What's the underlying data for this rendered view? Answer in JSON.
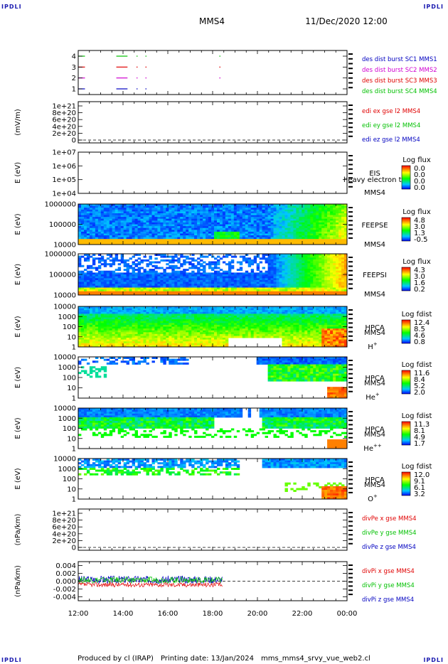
{
  "header": {
    "corner_label": "IPDLI",
    "spacecraft": "MMS4",
    "datetime": "11/Dec/2020 12:00"
  },
  "footer": {
    "produced_by": "Produced by cl (IRAP)",
    "printing_date": "Printing date: 13/Jan/2024",
    "filename": "mms_mms4_srvy_vue_web2.cl"
  },
  "time_axis": {
    "ticks": [
      "12:00",
      "14:00",
      "16:00",
      "18:00",
      "20:00",
      "22:00",
      "00:00"
    ],
    "start_hour": 12,
    "end_hour": 24
  },
  "colors": {
    "red": "#e00000",
    "green": "#00c000",
    "blue": "#0000c0",
    "magenta": "#d000d0"
  },
  "chart_data": [
    {
      "type": "line",
      "name": "burst",
      "yticks": [
        "1",
        "2",
        "3",
        "4"
      ],
      "legend": [
        {
          "label": "des dist burst SC1 MMS1",
          "color": "#0000c0"
        },
        {
          "label": "des dist burst SC2 MMS2",
          "color": "#d000d0"
        },
        {
          "label": "des dist burst SC3 MMS3",
          "color": "#e00000"
        },
        {
          "label": "des dist burst SC4 MMS4",
          "color": "#00c000"
        }
      ],
      "segments": [
        {
          "level": 4,
          "color": "#00c000",
          "ranges": [
            [
              12.0,
              12.3
            ],
            [
              13.7,
              14.2
            ],
            [
              14.6,
              14.65
            ],
            [
              15.0,
              15.05
            ],
            [
              18.3,
              18.35
            ]
          ]
        },
        {
          "level": 3,
          "color": "#e00000",
          "ranges": [
            [
              12.0,
              12.3
            ],
            [
              13.7,
              14.2
            ],
            [
              14.6,
              14.65
            ],
            [
              15.0,
              15.05
            ],
            [
              18.3,
              18.35
            ]
          ]
        },
        {
          "level": 2,
          "color": "#d000d0",
          "ranges": [
            [
              12.0,
              12.3
            ],
            [
              13.7,
              14.2
            ],
            [
              14.6,
              14.65
            ],
            [
              15.0,
              15.05
            ],
            [
              18.3,
              18.35
            ]
          ]
        },
        {
          "level": 1,
          "color": "#0000c0",
          "ranges": [
            [
              12.0,
              12.3
            ],
            [
              13.7,
              14.2
            ],
            [
              14.6,
              14.65
            ],
            [
              15.0,
              15.05
            ]
          ]
        }
      ]
    },
    {
      "type": "line",
      "name": "edi",
      "ylabel": "(mV/m)",
      "yticks": [
        "0",
        "2e+20",
        "4e+20",
        "6e+20",
        "8e+20",
        "1e+21"
      ],
      "legend": [
        {
          "label": "edi ex gse l2 MMS4",
          "color": "#e00000"
        },
        {
          "label": "edi ey gse l2 MMS4",
          "color": "#00c000"
        },
        {
          "label": "edi ez gse l2 MMS4",
          "color": "#0000c0"
        }
      ]
    },
    {
      "type": "heatmap",
      "name": "eis",
      "ylabel": "E (eV)",
      "yticks": [
        "1e+04",
        "1e+05",
        "1e+06",
        "1e+07"
      ],
      "instrument": "EIS",
      "spacecraft": "MMS4",
      "overlay": "heavy electron to",
      "colorbar": {
        "title": "Log flux",
        "ticks": [
          "0.0",
          "0.0",
          "0.0",
          "0.0"
        ]
      }
    },
    {
      "type": "heatmap",
      "name": "feeps-e",
      "ylabel": "E (eV)",
      "yticks": [
        "10000",
        "100000",
        "1000000"
      ],
      "instrument": "FEEPSE",
      "spacecraft": "MMS4",
      "colorbar": {
        "title": "Log flux",
        "ticks": [
          "4.8",
          "3.0",
          "1.3",
          "-0.5"
        ]
      }
    },
    {
      "type": "heatmap",
      "name": "feeps-i",
      "ylabel": "E (eV)",
      "yticks": [
        "10000",
        "100000",
        "1000000"
      ],
      "instrument": "FEEPSI",
      "spacecraft": "MMS4",
      "colorbar": {
        "title": "Log flux",
        "ticks": [
          "4.3",
          "3.0",
          "1.6",
          "0.2"
        ]
      }
    },
    {
      "type": "heatmap",
      "name": "hpca-h",
      "ylabel": "E (eV)",
      "yticks": [
        "1",
        "10",
        "100",
        "1000",
        "10000"
      ],
      "instrument": "HPCA",
      "spacecraft": "MMS4",
      "species": "H",
      "species_sup": "+",
      "colorbar": {
        "title": "Log fdist",
        "ticks": [
          "12.4",
          "8.5",
          "4.6",
          "0.8"
        ]
      }
    },
    {
      "type": "heatmap",
      "name": "hpca-he",
      "ylabel": "E (eV)",
      "yticks": [
        "1",
        "10",
        "100",
        "1000",
        "10000"
      ],
      "instrument": "HPCA",
      "spacecraft": "MMS4",
      "species": "He",
      "species_sup": "+",
      "colorbar": {
        "title": "Log fdist",
        "ticks": [
          "11.6",
          "8.4",
          "5.2",
          "2.0"
        ]
      }
    },
    {
      "type": "heatmap",
      "name": "hpca-hepp",
      "ylabel": "E (eV)",
      "yticks": [
        "1",
        "10",
        "100",
        "1000",
        "10000"
      ],
      "instrument": "HPCA",
      "spacecraft": "MMS4",
      "species": "He",
      "species_sup": "++",
      "colorbar": {
        "title": "Log fdist",
        "ticks": [
          "11.3",
          "8.1",
          "4.9",
          "1.7"
        ]
      }
    },
    {
      "type": "heatmap",
      "name": "hpca-o",
      "ylabel": "E (eV)",
      "yticks": [
        "1",
        "10",
        "100",
        "1000",
        "10000"
      ],
      "instrument": "HPCA",
      "spacecraft": "MMS4",
      "species": "O",
      "species_sup": "+",
      "colorbar": {
        "title": "Log fdist",
        "ticks": [
          "12.0",
          "9.1",
          "6.1",
          "3.2"
        ]
      }
    },
    {
      "type": "line",
      "name": "divpe",
      "ylabel": "(nPa/km)",
      "yticks": [
        "0",
        "2e+20",
        "4e+20",
        "6e+20",
        "8e+20",
        "1e+21"
      ],
      "legend": [
        {
          "label": "divPe x gse MMS4",
          "color": "#e00000"
        },
        {
          "label": "divPe y gse MMS4",
          "color": "#00c000"
        },
        {
          "label": "divPe z gse MMS4",
          "color": "#0000c0"
        }
      ]
    },
    {
      "type": "line",
      "name": "divpi",
      "ylabel": "(nPa/km)",
      "yticks": [
        "-0.004",
        "-0.002",
        "0.000",
        "0.002",
        "0.004"
      ],
      "ylim": [
        -0.005,
        0.005
      ],
      "data_end_hour": 18.45,
      "legend": [
        {
          "label": "divPi x gse MMS4",
          "color": "#e00000"
        },
        {
          "label": "divPi y gse MMS4",
          "color": "#00c000"
        },
        {
          "label": "divPi z gse MMS4",
          "color": "#0000c0"
        }
      ],
      "series": [
        {
          "name": "divPi x gse MMS4",
          "color": "#e00000",
          "mean": -0.0009,
          "amp": 0.0006
        },
        {
          "name": "divPi y gse MMS4",
          "color": "#00c000",
          "mean": 0.0003,
          "amp": 0.0008
        },
        {
          "name": "divPi z gse MMS4",
          "color": "#0000c0",
          "mean": 0.0004,
          "amp": 0.001
        }
      ]
    }
  ]
}
